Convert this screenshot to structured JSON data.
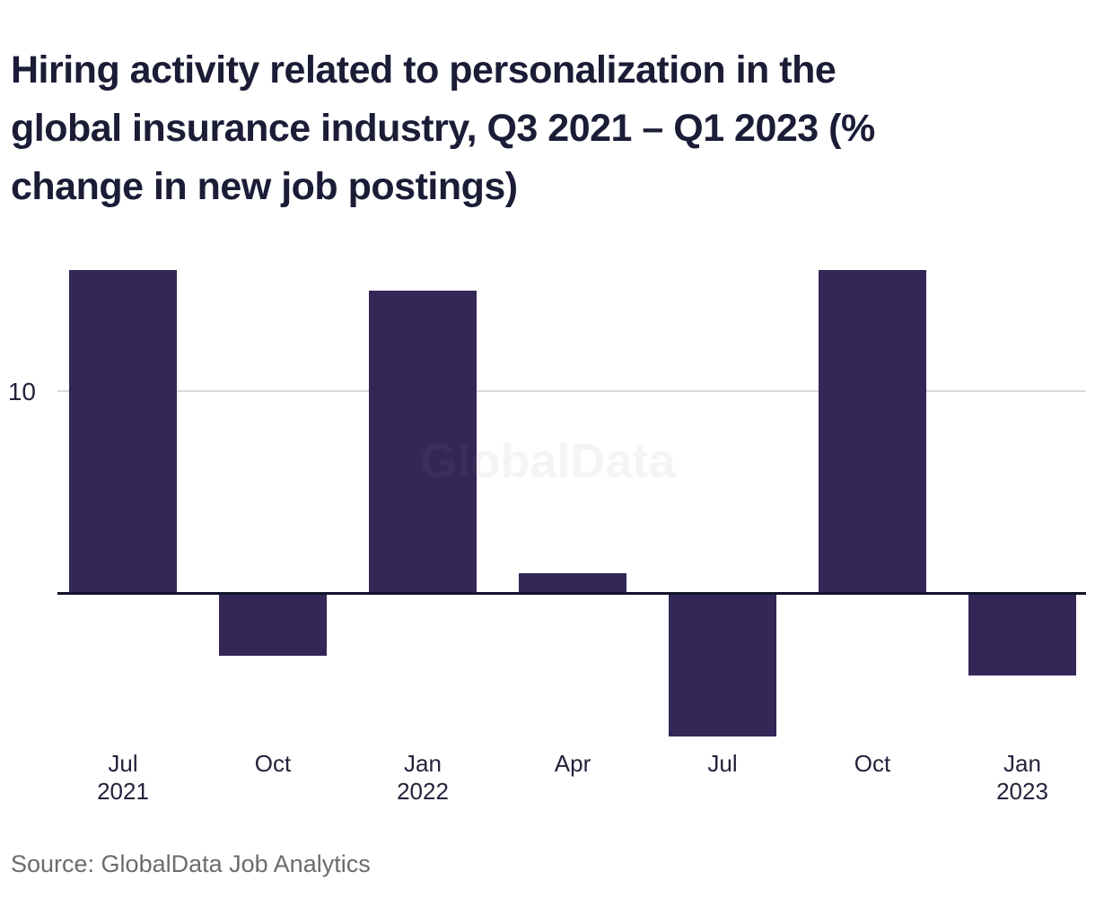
{
  "title_lines": [
    "Hiring activity related to personalization in the",
    "global insurance industry, Q3 2021 – Q1 2023 (%",
    "change in new job postings)"
  ],
  "watermark": "GlobalData",
  "source": "Source: GlobalData Job Analytics",
  "chart_data": {
    "type": "bar",
    "title": "Hiring activity related to personalization in the global insurance industry, Q3 2021 – Q1 2023 (% change in new job postings)",
    "categories": [
      "Jul 2021",
      "Oct 2021",
      "Jan 2022",
      "Apr 2022",
      "Jul 2022",
      "Oct 2022",
      "Jan 2023"
    ],
    "tick_labels": [
      [
        "Jul",
        "2021"
      ],
      [
        "Oct"
      ],
      [
        "Jan",
        "2022"
      ],
      [
        "Apr"
      ],
      [
        "Jul"
      ],
      [
        "Oct"
      ],
      [
        "Jan",
        "2023"
      ]
    ],
    "values": [
      16,
      -3,
      15,
      1,
      -7,
      16,
      -4
    ],
    "xlabel": "",
    "ylabel": "% change in new job postings",
    "ytick_label": "10",
    "ytick_value": 10,
    "ylim": [
      -8,
      16.5
    ],
    "grid": "single horizontal gridline at y=10",
    "legend": "none",
    "colors": {
      "bar": "#342657",
      "title": "#1b1c36",
      "axis_label": "#23233c",
      "zero_line": "#13132b",
      "gridline": "#d9d9d9",
      "source_text": "#6b6b6b",
      "watermark_text": "rgba(128,128,128,0.09)",
      "background": "#ffffff"
    }
  }
}
